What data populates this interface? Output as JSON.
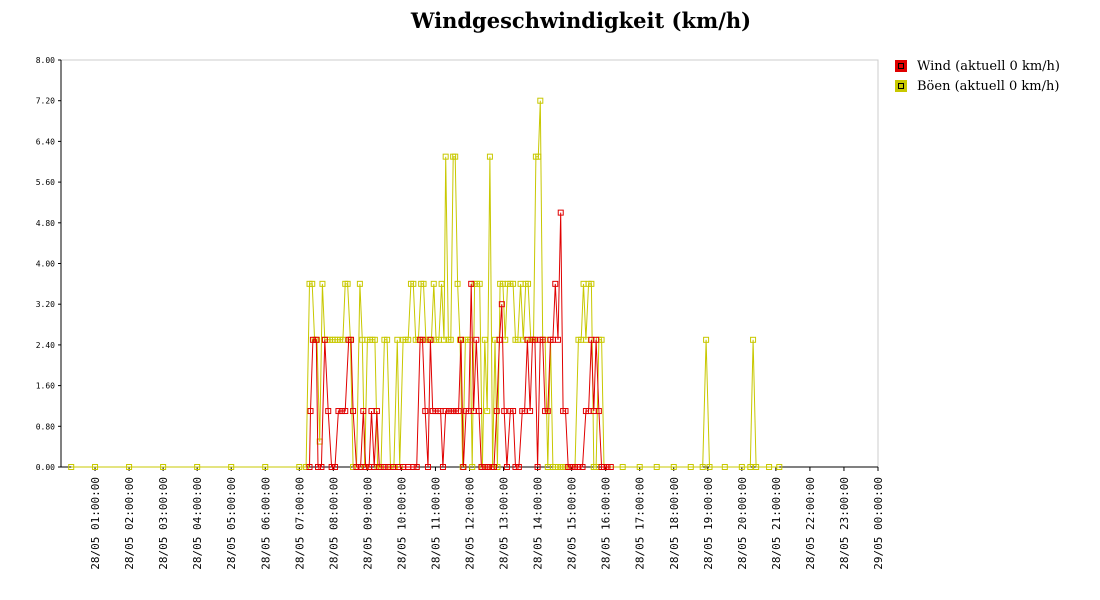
{
  "chart_data": {
    "type": "line",
    "title": "Windgeschwindigkeit (km/h)",
    "xlabel": "",
    "ylabel": "",
    "ylim": [
      0,
      8
    ],
    "y_ticks": [
      "0.00",
      "0.80",
      "1.60",
      "2.40",
      "3.20",
      "4.00",
      "4.80",
      "5.60",
      "6.40",
      "7.20",
      "8.00"
    ],
    "x_tick_labels": [
      "28/05 01:00:00",
      "28/05 02:00:00",
      "28/05 03:00:00",
      "28/05 04:00:00",
      "28/05 05:00:00",
      "28/05 06:00:00",
      "28/05 07:00:00",
      "28/05 08:00:00",
      "28/05 09:00:00",
      "28/05 10:00:00",
      "28/05 11:00:00",
      "28/05 12:00:00",
      "28/05 13:00:00",
      "28/05 14:00:00",
      "28/05 15:00:00",
      "28/05 16:00:00",
      "28/05 17:00:00",
      "28/05 18:00:00",
      "28/05 19:00:00",
      "28/05 20:00:00",
      "28/05 21:00:00",
      "28/05 22:00:00",
      "28/05 23:00:00",
      "29/05 00:00:00"
    ],
    "x_unit_note": "x values are hours of 28/05 (decimal)",
    "grid": false,
    "legend_placement": "right",
    "series": [
      {
        "name": "Wind (aktuell 0 km/h)",
        "color": "#e00000",
        "points": [
          [
            7.3,
            0
          ],
          [
            7.33,
            1.1
          ],
          [
            7.4,
            2.5
          ],
          [
            7.5,
            2.5
          ],
          [
            7.55,
            0
          ],
          [
            7.65,
            0
          ],
          [
            7.75,
            2.5
          ],
          [
            7.85,
            1.1
          ],
          [
            7.95,
            0
          ],
          [
            8.05,
            0
          ],
          [
            8.15,
            1.1
          ],
          [
            8.25,
            1.1
          ],
          [
            8.35,
            1.1
          ],
          [
            8.45,
            2.5
          ],
          [
            8.52,
            2.5
          ],
          [
            8.58,
            1.1
          ],
          [
            8.68,
            0
          ],
          [
            8.8,
            0
          ],
          [
            8.88,
            1.1
          ],
          [
            8.95,
            0
          ],
          [
            9.05,
            0
          ],
          [
            9.12,
            1.1
          ],
          [
            9.2,
            0
          ],
          [
            9.28,
            1.1
          ],
          [
            9.35,
            0
          ],
          [
            9.5,
            0
          ],
          [
            9.6,
            0
          ],
          [
            9.75,
            0
          ],
          [
            9.9,
            0
          ],
          [
            10.05,
            0
          ],
          [
            10.2,
            0
          ],
          [
            10.35,
            0
          ],
          [
            10.45,
            0
          ],
          [
            10.55,
            2.5
          ],
          [
            10.62,
            2.5
          ],
          [
            10.7,
            1.1
          ],
          [
            10.78,
            0
          ],
          [
            10.85,
            2.5
          ],
          [
            10.92,
            1.1
          ],
          [
            11.0,
            1.1
          ],
          [
            11.08,
            1.1
          ],
          [
            11.15,
            1.1
          ],
          [
            11.22,
            0
          ],
          [
            11.3,
            1.1
          ],
          [
            11.4,
            1.1
          ],
          [
            11.5,
            1.1
          ],
          [
            11.6,
            1.1
          ],
          [
            11.68,
            1.1
          ],
          [
            11.75,
            2.5
          ],
          [
            11.82,
            0
          ],
          [
            11.9,
            1.1
          ],
          [
            11.98,
            1.1
          ],
          [
            12.05,
            3.6
          ],
          [
            12.12,
            1.1
          ],
          [
            12.2,
            2.5
          ],
          [
            12.28,
            1.1
          ],
          [
            12.35,
            0
          ],
          [
            12.45,
            0
          ],
          [
            12.55,
            0
          ],
          [
            12.65,
            0
          ],
          [
            12.72,
            0
          ],
          [
            12.8,
            1.1
          ],
          [
            12.88,
            2.5
          ],
          [
            12.95,
            3.2
          ],
          [
            13.02,
            1.1
          ],
          [
            13.1,
            0
          ],
          [
            13.2,
            1.1
          ],
          [
            13.28,
            1.1
          ],
          [
            13.35,
            0
          ],
          [
            13.45,
            0
          ],
          [
            13.55,
            1.1
          ],
          [
            13.62,
            1.1
          ],
          [
            13.7,
            2.5
          ],
          [
            13.78,
            1.1
          ],
          [
            13.85,
            2.5
          ],
          [
            13.92,
            2.5
          ],
          [
            14.0,
            0
          ],
          [
            14.08,
            2.5
          ],
          [
            14.15,
            2.5
          ],
          [
            14.22,
            1.1
          ],
          [
            14.3,
            1.1
          ],
          [
            14.38,
            2.5
          ],
          [
            14.45,
            2.5
          ],
          [
            14.52,
            3.6
          ],
          [
            14.6,
            2.5
          ],
          [
            14.68,
            5.0
          ],
          [
            14.75,
            1.1
          ],
          [
            14.82,
            1.1
          ],
          [
            14.9,
            0
          ],
          [
            15.0,
            0
          ],
          [
            15.1,
            0
          ],
          [
            15.2,
            0
          ],
          [
            15.32,
            0
          ],
          [
            15.42,
            1.1
          ],
          [
            15.5,
            1.1
          ],
          [
            15.58,
            2.5
          ],
          [
            15.65,
            1.1
          ],
          [
            15.72,
            2.5
          ],
          [
            15.8,
            1.1
          ],
          [
            15.88,
            0
          ],
          [
            15.95,
            0
          ],
          [
            16.05,
            0
          ],
          [
            16.15,
            0
          ]
        ]
      },
      {
        "name": "Böen (aktuell 0 km/h)",
        "color": "#c8c800",
        "points": [
          [
            0.3,
            0
          ],
          [
            1.0,
            0
          ],
          [
            2.0,
            0
          ],
          [
            3.0,
            0
          ],
          [
            4.0,
            0
          ],
          [
            5.0,
            0
          ],
          [
            6.0,
            0
          ],
          [
            7.0,
            0
          ],
          [
            7.2,
            0
          ],
          [
            7.3,
            3.6
          ],
          [
            7.38,
            3.6
          ],
          [
            7.45,
            2.5
          ],
          [
            7.52,
            2.5
          ],
          [
            7.6,
            0.5
          ],
          [
            7.68,
            3.6
          ],
          [
            7.75,
            2.5
          ],
          [
            7.82,
            2.5
          ],
          [
            7.9,
            2.5
          ],
          [
            7.98,
            2.5
          ],
          [
            8.05,
            2.5
          ],
          [
            8.12,
            2.5
          ],
          [
            8.2,
            2.5
          ],
          [
            8.28,
            2.5
          ],
          [
            8.35,
            3.6
          ],
          [
            8.42,
            3.6
          ],
          [
            8.5,
            2.5
          ],
          [
            8.58,
            0
          ],
          [
            8.68,
            0
          ],
          [
            8.78,
            3.6
          ],
          [
            8.85,
            2.5
          ],
          [
            8.92,
            0
          ],
          [
            9.0,
            2.5
          ],
          [
            9.08,
            2.5
          ],
          [
            9.15,
            2.5
          ],
          [
            9.22,
            2.5
          ],
          [
            9.3,
            0
          ],
          [
            9.4,
            0
          ],
          [
            9.5,
            2.5
          ],
          [
            9.58,
            2.5
          ],
          [
            9.68,
            0
          ],
          [
            9.78,
            0
          ],
          [
            9.88,
            2.5
          ],
          [
            9.95,
            0
          ],
          [
            10.05,
            2.5
          ],
          [
            10.12,
            2.5
          ],
          [
            10.2,
            2.5
          ],
          [
            10.28,
            3.6
          ],
          [
            10.35,
            3.6
          ],
          [
            10.42,
            2.5
          ],
          [
            10.5,
            2.5
          ],
          [
            10.58,
            3.6
          ],
          [
            10.65,
            3.6
          ],
          [
            10.72,
            2.5
          ],
          [
            10.8,
            2.5
          ],
          [
            10.88,
            2.5
          ],
          [
            10.95,
            3.6
          ],
          [
            11.02,
            2.5
          ],
          [
            11.1,
            2.5
          ],
          [
            11.18,
            3.6
          ],
          [
            11.25,
            2.5
          ],
          [
            11.3,
            6.1
          ],
          [
            11.38,
            2.5
          ],
          [
            11.45,
            2.5
          ],
          [
            11.52,
            6.1
          ],
          [
            11.58,
            6.1
          ],
          [
            11.65,
            3.6
          ],
          [
            11.72,
            2.5
          ],
          [
            11.8,
            0
          ],
          [
            11.88,
            2.5
          ],
          [
            11.95,
            2.5
          ],
          [
            12.02,
            2.5
          ],
          [
            12.08,
            0
          ],
          [
            12.15,
            3.6
          ],
          [
            12.22,
            3.6
          ],
          [
            12.3,
            3.6
          ],
          [
            12.38,
            0
          ],
          [
            12.45,
            2.5
          ],
          [
            12.52,
            1.1
          ],
          [
            12.6,
            6.1
          ],
          [
            12.68,
            0
          ],
          [
            12.75,
            2.5
          ],
          [
            12.82,
            0
          ],
          [
            12.9,
            3.6
          ],
          [
            12.98,
            3.6
          ],
          [
            13.05,
            2.5
          ],
          [
            13.12,
            3.6
          ],
          [
            13.2,
            3.6
          ],
          [
            13.28,
            3.6
          ],
          [
            13.35,
            2.5
          ],
          [
            13.42,
            2.5
          ],
          [
            13.5,
            3.6
          ],
          [
            13.58,
            2.5
          ],
          [
            13.65,
            3.6
          ],
          [
            13.72,
            3.6
          ],
          [
            13.8,
            2.5
          ],
          [
            13.88,
            2.5
          ],
          [
            13.95,
            6.1
          ],
          [
            14.02,
            6.1
          ],
          [
            14.08,
            7.2
          ],
          [
            14.15,
            2.5
          ],
          [
            14.22,
            2.5
          ],
          [
            14.3,
            0
          ],
          [
            14.38,
            2.5
          ],
          [
            14.45,
            0
          ],
          [
            14.52,
            0
          ],
          [
            14.6,
            0
          ],
          [
            14.7,
            0
          ],
          [
            14.8,
            0
          ],
          [
            14.9,
            0
          ],
          [
            15.0,
            0
          ],
          [
            15.1,
            0
          ],
          [
            15.2,
            2.5
          ],
          [
            15.28,
            2.5
          ],
          [
            15.35,
            3.6
          ],
          [
            15.42,
            2.5
          ],
          [
            15.5,
            3.6
          ],
          [
            15.58,
            3.6
          ],
          [
            15.65,
            0
          ],
          [
            15.72,
            0
          ],
          [
            15.8,
            2.5
          ],
          [
            15.88,
            2.5
          ],
          [
            15.95,
            0
          ],
          [
            16.05,
            0
          ],
          [
            16.5,
            0
          ],
          [
            17.0,
            0
          ],
          [
            17.5,
            0
          ],
          [
            18.0,
            0
          ],
          [
            18.5,
            0
          ],
          [
            18.85,
            0
          ],
          [
            18.95,
            2.5
          ],
          [
            19.05,
            0
          ],
          [
            19.5,
            0
          ],
          [
            20.0,
            0
          ],
          [
            20.25,
            0
          ],
          [
            20.33,
            2.5
          ],
          [
            20.42,
            0
          ],
          [
            20.8,
            0
          ],
          [
            21.1,
            0
          ]
        ]
      }
    ]
  }
}
